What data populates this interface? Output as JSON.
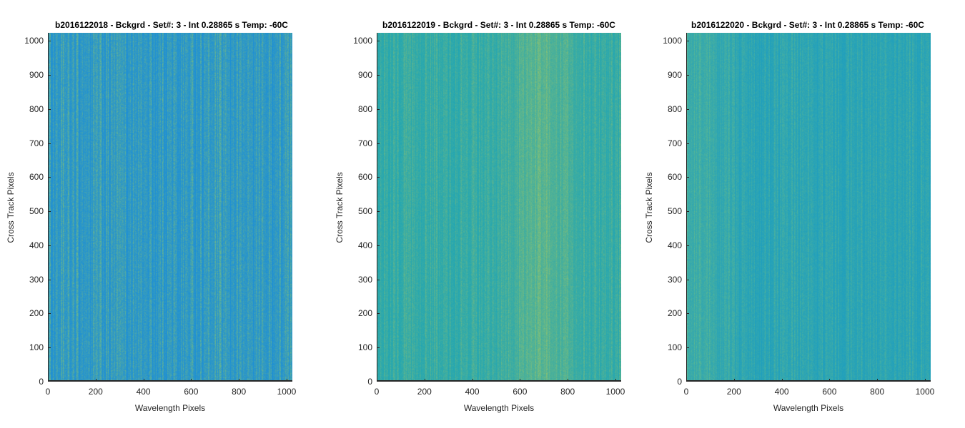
{
  "chart_data": [
    {
      "type": "heatmap",
      "title": "b2016122018 - Bckgrd - Set#: 3 - Int 0.28865 s Temp: -60C",
      "xlabel": "Wavelength Pixels",
      "ylabel": "Cross Track Pixels",
      "xlim": [
        0,
        1024
      ],
      "ylim": [
        0,
        1024
      ],
      "xticks": [
        0,
        200,
        400,
        600,
        800,
        1000
      ],
      "yticks": [
        0,
        100,
        200,
        300,
        400,
        500,
        600,
        700,
        800,
        900,
        1000
      ],
      "colormap": "parula",
      "base_color": "#1d8fd6",
      "highlight_color": "#8fc86a",
      "texture": "vertical streaks, mostly blue with scattered yellow-green"
    },
    {
      "type": "heatmap",
      "title": "b2016122019 - Bckgrd - Set#: 3 - Int 0.28865 s Temp: -60C",
      "xlabel": "Wavelength Pixels",
      "ylabel": "Cross Track Pixels",
      "xlim": [
        0,
        1024
      ],
      "ylim": [
        0,
        1024
      ],
      "xticks": [
        0,
        200,
        400,
        600,
        800,
        1000
      ],
      "yticks": [
        0,
        100,
        200,
        300,
        400,
        500,
        600,
        700,
        800,
        900,
        1000
      ],
      "colormap": "parula",
      "base_color": "#22a6b3",
      "highlight_color": "#a7c860",
      "texture": "teal with brighter band near x 550-850"
    },
    {
      "type": "heatmap",
      "title": "b2016122020 - Bckgrd - Set#: 3 - Int 0.28865 s Temp: -60C",
      "xlabel": "Wavelength Pixels",
      "ylabel": "Cross Track Pixels",
      "xlim": [
        0,
        1024
      ],
      "ylim": [
        0,
        1024
      ],
      "xticks": [
        0,
        200,
        400,
        600,
        800,
        1000
      ],
      "yticks": [
        0,
        100,
        200,
        300,
        400,
        500,
        600,
        700,
        800,
        900,
        1000
      ],
      "colormap": "parula",
      "base_color": "#1f9fbe",
      "highlight_color": "#7cc67a",
      "texture": "teal, greener on left edge near x 0-250"
    }
  ]
}
